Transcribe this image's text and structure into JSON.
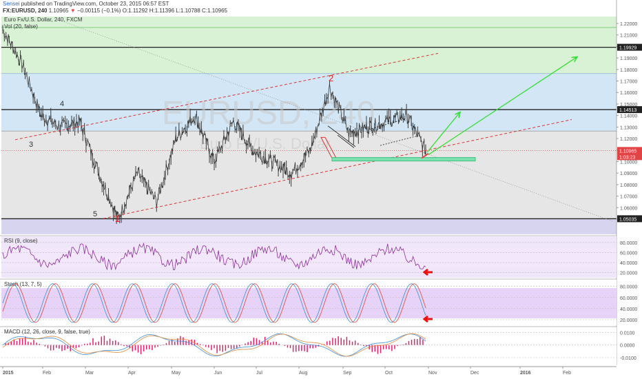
{
  "header": {
    "author": "Sensei",
    "published_text": "published on TradingView.com, October 23, 2015 06:57 EST",
    "symbol": "FX:EURUSD, 240",
    "last": "1.10965",
    "change": "−0.00115 (−0.1%)",
    "ohlc": "O:1.11292 H:1.11396 L:1.10788 C:1.10965"
  },
  "main_pane": {
    "legend": "Euro Fx/U.S. Dollar, 240, FXCM",
    "vol_legend": "Vol (20, false)",
    "watermark_symbol": "EURUSD, 240",
    "watermark_name": "Euro Fx/U.S. Dollar",
    "wave_labels": [
      "1",
      "2",
      "3",
      "4",
      "5"
    ],
    "axis_ticks": [
      "1.22000",
      "1.21000",
      "1.20000",
      "1.19000",
      "1.18000",
      "1.17000",
      "1.16000",
      "1.15000",
      "1.14000",
      "1.13000",
      "1.12000",
      "1.11000",
      "1.10000",
      "1.09000",
      "1.08000",
      "1.07000",
      "1.06000",
      "1.05000"
    ],
    "price_badges": [
      {
        "value": "1.19929",
        "color": "#222222"
      },
      {
        "value": "1.14513",
        "color": "#222222"
      },
      {
        "value": "1.10965",
        "color": "#e04444"
      },
      {
        "value": "1:03:23",
        "color": "#e04444"
      },
      {
        "value": "1.05035",
        "color": "#222222"
      }
    ]
  },
  "rsi_pane": {
    "legend": "RSI (9, close)",
    "ticks": [
      "80.0000",
      "60.0000",
      "40.0000",
      "20.0000"
    ]
  },
  "stoch_pane": {
    "legend": "Stoch (13, 7, 5)",
    "ticks": [
      "80.0000",
      "60.0000",
      "40.0000",
      "20.0000"
    ]
  },
  "macd_pane": {
    "legend": "MACD (12, 26, close, 9, false, true)",
    "ticks": [
      "0.0100",
      "0.0000",
      "-0.0100"
    ]
  },
  "time_axis": [
    "2015",
    "Feb",
    "Mar",
    "Apr",
    "May",
    "Jun",
    "Jul",
    "Aug",
    "Sep",
    "Oct",
    "Nov",
    "Dec",
    "2016",
    "Feb"
  ],
  "colors": {
    "up": "#3a3a3a",
    "down": "#3a3a3a",
    "trend": "#dd3333",
    "arrow_green": "#33dd33",
    "rsi": "#8a2b9a",
    "stoch_k": "#3a8fd8",
    "stoch_d": "#e0443a",
    "macd_hist": "#e0206a"
  },
  "chart_data": {
    "type": "line",
    "title": "Euro Fx/U.S. Dollar, 240, FXCM",
    "x": [
      "2015-01",
      "2015-01",
      "2015-01",
      "2015-02",
      "2015-02",
      "2015-03",
      "2015-03",
      "2015-04",
      "2015-04",
      "2015-05",
      "2015-05",
      "2015-06",
      "2015-06",
      "2015-07",
      "2015-07",
      "2015-08",
      "2015-08",
      "2015-08",
      "2015-09",
      "2015-09",
      "2015-10",
      "2015-10",
      "2015-10"
    ],
    "series": [
      {
        "values": [
          1.215,
          1.185,
          1.14,
          1.13,
          1.135,
          1.09,
          1.05,
          1.09,
          1.065,
          1.12,
          1.14,
          1.1,
          1.135,
          1.11,
          1.1,
          1.09,
          1.11,
          1.165,
          1.125,
          1.13,
          1.135,
          1.14,
          1.1097
        ]
      }
    ],
    "ylim": [
      1.04,
      1.225
    ]
  }
}
